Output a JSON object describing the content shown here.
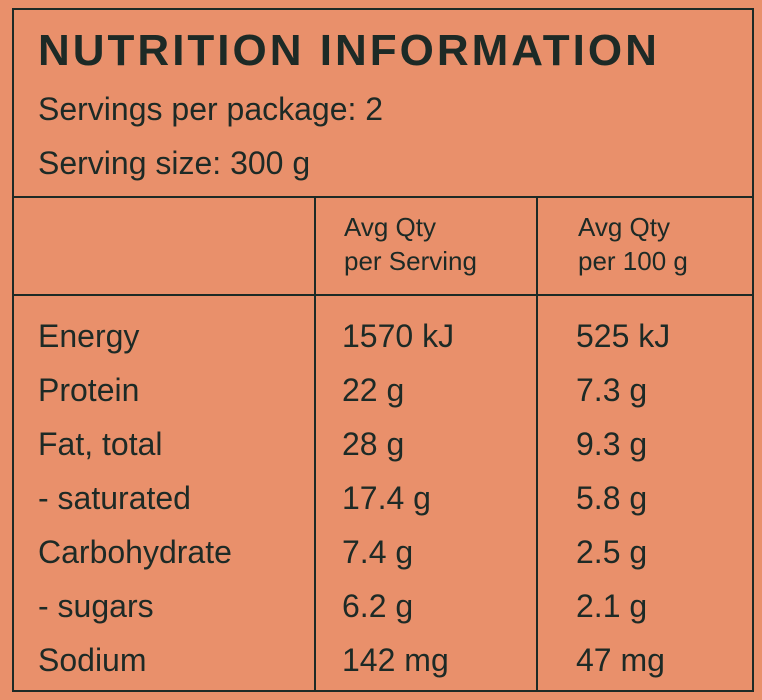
{
  "panel": {
    "title": "NUTRITION INFORMATION",
    "servings_per_package": "Servings per package: 2",
    "serving_size": "Serving size: 300 g"
  },
  "columns": {
    "per_serving": [
      "Avg Qty",
      "per Serving"
    ],
    "per_100g": [
      "Avg Qty",
      "per 100 g"
    ]
  },
  "rows": [
    {
      "nutrient": "Energy",
      "per_serving": "1570 kJ",
      "per_100g": "525 kJ"
    },
    {
      "nutrient": "Protein",
      "per_serving": "22 g",
      "per_100g": "7.3 g"
    },
    {
      "nutrient": "Fat, total",
      "per_serving": "28 g",
      "per_100g": "9.3 g"
    },
    {
      "nutrient": "- saturated",
      "per_serving": "17.4 g",
      "per_100g": "5.8 g"
    },
    {
      "nutrient": "Carbohydrate",
      "per_serving": "7.4 g",
      "per_100g": "2.5 g"
    },
    {
      "nutrient": "- sugars",
      "per_serving": "6.2 g",
      "per_100g": "2.1 g"
    },
    {
      "nutrient": "Sodium",
      "per_serving": "142 mg",
      "per_100g": "47 mg"
    }
  ],
  "colors": {
    "background": "#e9906b",
    "ink": "#1d2a26"
  }
}
